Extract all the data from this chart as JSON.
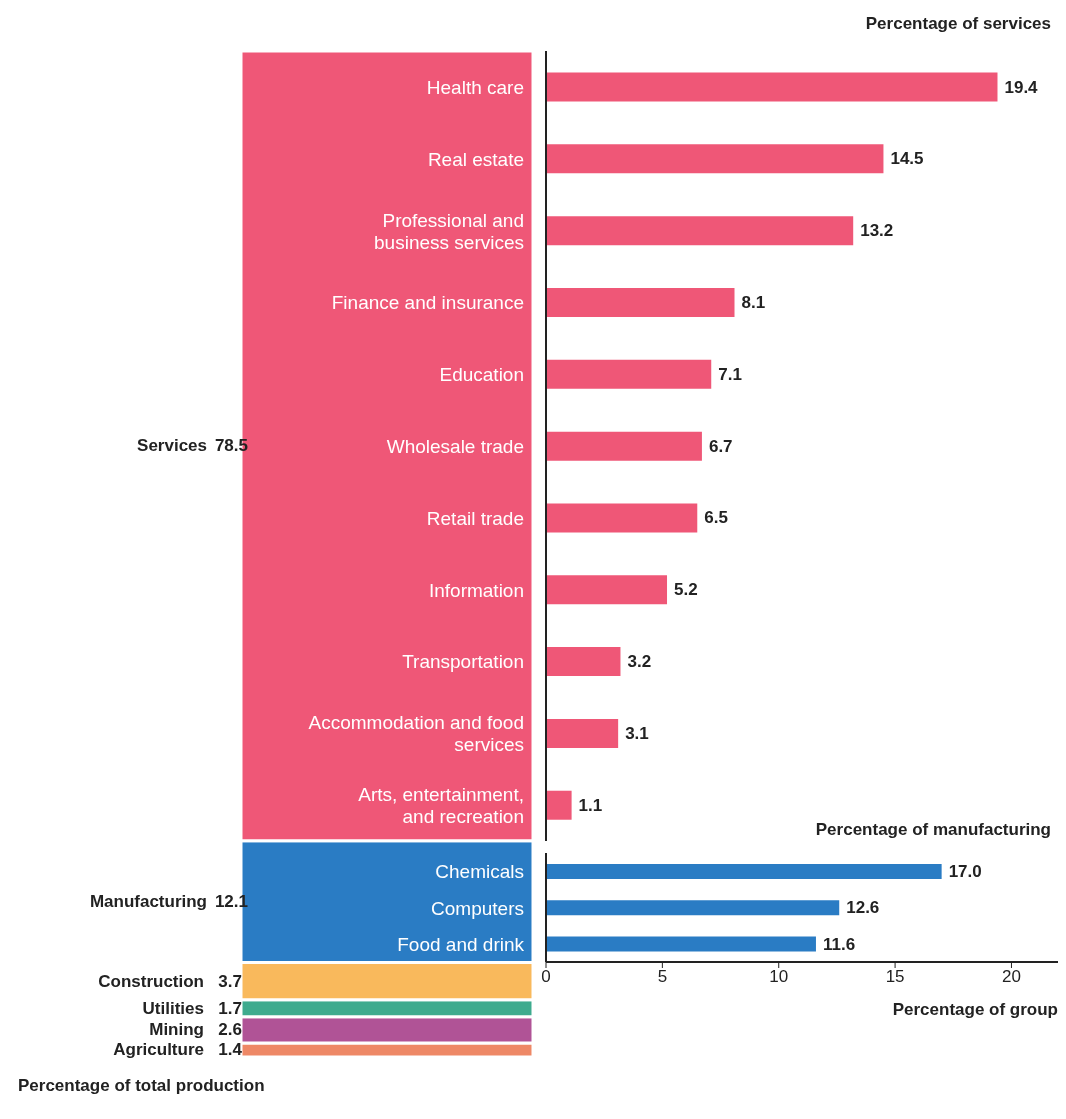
{
  "chart_data": [
    {
      "type": "bar",
      "stacked": true,
      "categories": [
        null
      ],
      "tick_labels": false,
      "data_labels": true,
      "xlabel": "Percentage of total production",
      "series": [
        {
          "name": "Agriculture",
          "color": "#ee8866",
          "values": [
            1.4
          ]
        },
        {
          "name": "Mining",
          "color": "#b05396",
          "values": [
            2.6
          ]
        },
        {
          "name": "Utilities",
          "color": "#3eab8e",
          "values": [
            1.7
          ]
        },
        {
          "name": "Construction",
          "color": "#f9b95c",
          "values": [
            3.7
          ]
        },
        {
          "name": "Manufacturing",
          "color": "#2a7cc4",
          "values": [
            12.1
          ]
        },
        {
          "name": "Services",
          "color": "#ef5777",
          "values": [
            78.5
          ]
        }
      ]
    },
    {
      "type": "bar",
      "orientation": "horizontal",
      "title": "Percentage of services",
      "color": "#ef5777",
      "tick_labels": "y",
      "data_labels": true,
      "categories": [
        "Health care",
        "Real estate",
        "Professional and business services",
        "Finance and insurance",
        "Education",
        "Wholesale trade",
        "Retail trade",
        "Information",
        "Transportation",
        "Accommodation and food services",
        "Arts, entertainment, and recreation"
      ],
      "values": [
        19.4,
        14.5,
        13.2,
        8.1,
        7.1,
        6.7,
        6.5,
        5.2,
        3.2,
        3.1,
        1.1
      ]
    },
    {
      "type": "bar",
      "orientation": "horizontal",
      "title": "Percentage of manufacturing",
      "xlabel": "Percentage of group",
      "color": "#2a7cc4",
      "xlim": [
        0,
        22
      ],
      "xticks": [
        0,
        5,
        10,
        15,
        20
      ],
      "categories": [
        "Chemicals",
        "Computers",
        "Food and drink"
      ],
      "values": [
        17.0,
        12.6,
        11.6
      ],
      "value_labels": [
        "17.0",
        "12.6",
        "11.6"
      ]
    }
  ]
}
